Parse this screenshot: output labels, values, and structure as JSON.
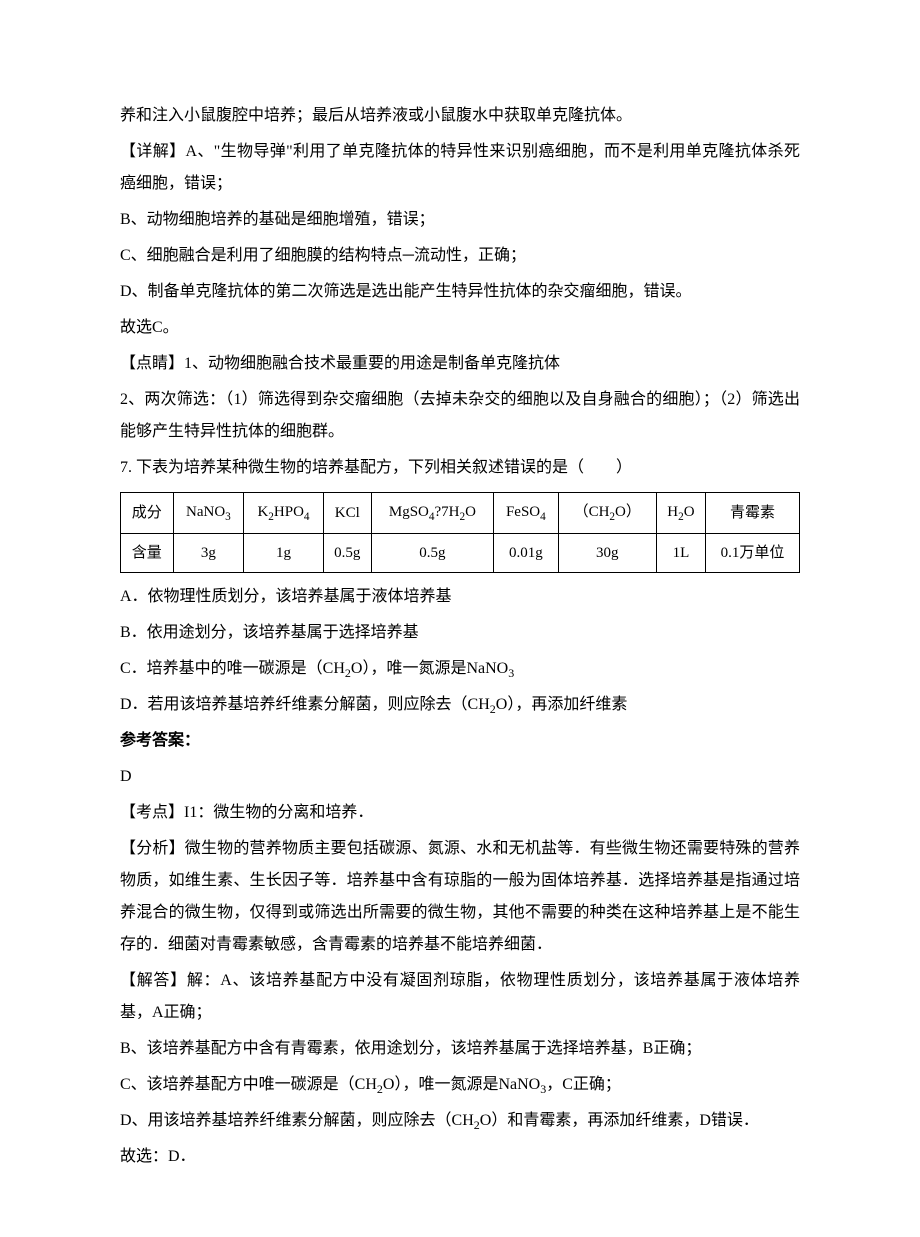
{
  "text": {
    "p1": "养和注入小鼠腹腔中培养；最后从培养液或小鼠腹水中获取单克隆抗体。",
    "p2": "【详解】A、\"生物导弹\"利用了单克隆抗体的特异性来识别癌细胞，而不是利用单克隆抗体杀死癌细胞，错误；",
    "p3": "B、动物细胞培养的基础是细胞增殖，错误；",
    "p4": "C、细胞融合是利用了细胞膜的结构特点─流动性，正确；",
    "p5": "D、制备单克隆抗体的第二次筛选是选出能产生特异性抗体的杂交瘤细胞，错误。",
    "p6": "故选C。",
    "p7": "【点睛】1、动物细胞融合技术最重要的用途是制备单克隆抗体",
    "p8": "2、两次筛选：（1）筛选得到杂交瘤细胞（去掉未杂交的细胞以及自身融合的细胞）；（2）筛选出能够产生特异性抗体的细胞群。",
    "q7": "7. 下表为培养某种微生物的培养基配方，下列相关叙述错误的是（　　）",
    "optA": "A．依物理性质划分，该培养基属于液体培养基",
    "optB": "B．依用途划分，该培养基属于选择培养基",
    "optC_pre": "C．培养基中的唯一碳源是（CH",
    "optC_sub1": "2",
    "optC_mid": "O），唯一氮源是NaNO",
    "optC_sub2": "3",
    "optD_pre": "D．若用该培养基培养纤维素分解菌，则应除去（CH",
    "optD_sub": "2",
    "optD_post": "O），再添加纤维素",
    "answer_label": "参考答案：",
    "answer": "D",
    "kp": "【考点】I1：微生物的分离和培养．",
    "analysis": "【分析】微生物的营养物质主要包括碳源、氮源、水和无机盐等．有些微生物还需要特殊的营养物质，如维生素、生长因子等．培养基中含有琼脂的一般为固体培养基．选择培养基是指通过培养混合的微生物，仅得到或筛选出所需要的微生物，其他不需要的种类在这种培养基上是不能生存的．细菌对青霉素敏感，含青霉素的培养基不能培养细菌．",
    "solveA": "【解答】解：A、该培养基配方中没有凝固剂琼脂，依物理性质划分，该培养基属于液体培养基，A正确；",
    "solveB": "B、该培养基配方中含有青霉素，依用途划分，该培养基属于选择培养基，B正确；",
    "solveC_pre": "C、该培养基配方中唯一碳源是（CH",
    "solveC_sub1": "2",
    "solveC_mid": "O），唯一氮源是NaNO",
    "solveC_sub2": "3",
    "solveC_post": "，C正确；",
    "solveD_pre": "D、用该培养基培养纤维素分解菌，则应除去（CH",
    "solveD_sub": "2",
    "solveD_post": "O）和青霉素，再添加纤维素，D错误．",
    "conclude": "故选：D．"
  },
  "table": {
    "row1_label": "成分",
    "row2_label": "含量",
    "c1_sub": "3",
    "c2_a": "2",
    "c2_b": "4",
    "c4_a": "4",
    "c4_b": "2",
    "c5_sub": "4",
    "c6_sub": "2",
    "c7_sub": "2",
    "c1_pre": "NaNO",
    "c2_pre": "K",
    "c2_mid": "HPO",
    "c3": "KCl",
    "c4_pre": "MgSO",
    "c4_mid": "?7H",
    "c4_post": "O",
    "c5_pre": "FeSO",
    "c6_pre": "（CH",
    "c6_post": "O）",
    "c7_pre": "H",
    "c7_post": "O",
    "c8": "青霉素",
    "v1": "3g",
    "v2": "1g",
    "v3": "0.5g",
    "v4": "0.5g",
    "v5": "0.01g",
    "v6": "30g",
    "v7": "1L",
    "v8": "0.1万单位"
  },
  "colors": {
    "text": "#000000",
    "background": "#ffffff",
    "border": "#000000"
  },
  "typography": {
    "body_font_size": 16,
    "table_font_size": 15,
    "line_height": 2.0
  }
}
